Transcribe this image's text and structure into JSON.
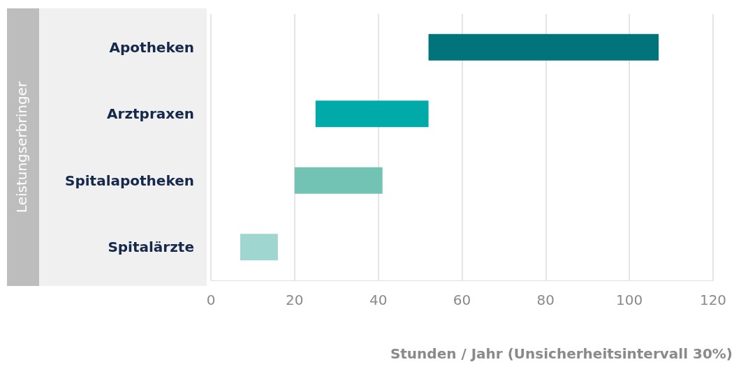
{
  "chart_data": {
    "type": "bar",
    "orientation": "horizontal",
    "ylabel": "Leistungserbringer",
    "xlabel": "Stunden / Jahr (Unsicherheitsintervall 30%)",
    "categories": [
      "Apotheken",
      "Arztpraxen",
      "Spitalapotheken",
      "Spitalärzte"
    ],
    "base": [
      52,
      25,
      20,
      7
    ],
    "values": [
      55,
      27,
      21,
      9
    ],
    "colors": [
      "#00747a",
      "#00aaa9",
      "#72c3b3",
      "#9fd6d0"
    ],
    "xlim": [
      0,
      120
    ],
    "xticks": [
      0,
      20,
      40,
      60,
      80,
      100,
      120
    ],
    "grid": "x"
  }
}
